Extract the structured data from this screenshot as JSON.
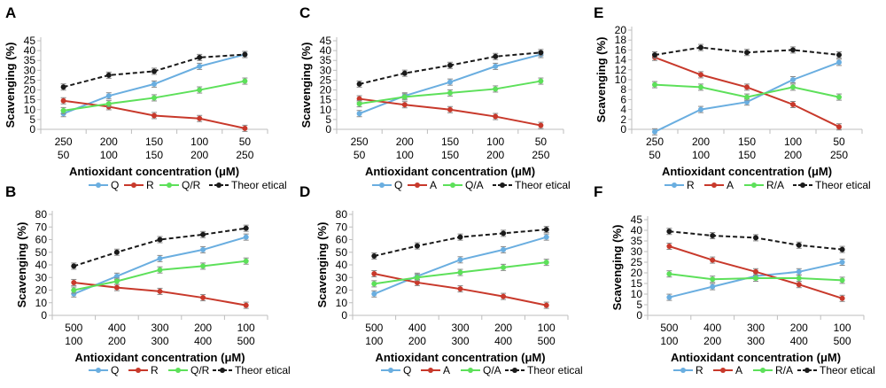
{
  "colors": {
    "blue": "#6aaee0",
    "red": "#c8392b",
    "green": "#5de05a",
    "black": "#1a1a1a",
    "grid": "#bdbdbd"
  },
  "chart_data": [
    {
      "type": "line",
      "panel": "A",
      "ylabel": "Scavenging (%)",
      "xlabel": "Antioxidant concentration (μM)",
      "ylim": [
        0,
        45
      ],
      "yticks": [
        0,
        5,
        10,
        15,
        20,
        25,
        30,
        35,
        40,
        45
      ],
      "categories": [
        [
          "250",
          "50"
        ],
        [
          "200",
          "100"
        ],
        [
          "150",
          "150"
        ],
        [
          "100",
          "200"
        ],
        [
          "50",
          "250"
        ]
      ],
      "series": [
        {
          "name": "Q",
          "color": "blue",
          "values": [
            8,
            17,
            23,
            32,
            38
          ]
        },
        {
          "name": "R",
          "color": "red",
          "values": [
            14.5,
            11.5,
            7,
            5.5,
            0.5
          ]
        },
        {
          "name": "Q/R",
          "color": "green",
          "values": [
            9.5,
            13,
            16,
            20,
            24.5
          ]
        },
        {
          "name": "Theor etical",
          "color": "black",
          "dashed": true,
          "values": [
            21.5,
            27.5,
            29.5,
            36.5,
            38
          ]
        }
      ]
    },
    {
      "type": "line",
      "panel": "C",
      "ylabel": "Scavenging (%)",
      "xlabel": "Antioxidant concentration (μM)",
      "ylim": [
        0,
        45
      ],
      "yticks": [
        0,
        5,
        10,
        15,
        20,
        25,
        30,
        35,
        40,
        45
      ],
      "categories": [
        [
          "250",
          "50"
        ],
        [
          "200",
          "100"
        ],
        [
          "150",
          "150"
        ],
        [
          "100",
          "200"
        ],
        [
          "50",
          "250"
        ]
      ],
      "series": [
        {
          "name": "Q",
          "color": "blue",
          "values": [
            8,
            17,
            24,
            32,
            38
          ]
        },
        {
          "name": "A",
          "color": "red",
          "values": [
            15.5,
            12.5,
            10,
            6.5,
            2
          ]
        },
        {
          "name": "Q/A",
          "color": "green",
          "values": [
            13,
            16.5,
            18.5,
            20.5,
            24.5
          ]
        },
        {
          "name": "Theor etical",
          "color": "black",
          "dashed": true,
          "values": [
            23,
            28.5,
            32.5,
            37,
            39
          ]
        }
      ]
    },
    {
      "type": "line",
      "panel": "E",
      "ylabel": "Scavenging (%)",
      "xlabel": "Antioxidant concentration (μM)",
      "ylim": [
        0,
        20
      ],
      "yticks": [
        0,
        2,
        4,
        6,
        8,
        10,
        12,
        14,
        16,
        18,
        20
      ],
      "categories": [
        [
          "250",
          "50"
        ],
        [
          "200",
          "100"
        ],
        [
          "150",
          "150"
        ],
        [
          "100",
          "200"
        ],
        [
          "50",
          "250"
        ]
      ],
      "series": [
        {
          "name": "R",
          "color": "blue",
          "values": [
            -0.5,
            4,
            5.5,
            10,
            13.5
          ]
        },
        {
          "name": "A",
          "color": "red",
          "values": [
            14.5,
            11,
            8.5,
            5,
            0.5
          ]
        },
        {
          "name": "R/A",
          "color": "green",
          "values": [
            9,
            8.5,
            6.5,
            8.5,
            6.5
          ]
        },
        {
          "name": "Theor etical",
          "color": "black",
          "dashed": true,
          "values": [
            15,
            16.5,
            15.5,
            16,
            15
          ]
        }
      ]
    },
    {
      "type": "line",
      "panel": "B",
      "ylabel": "Scavenging (%)",
      "xlabel": "Antioxidant concentration (μM)",
      "ylim": [
        0,
        80
      ],
      "yticks": [
        0,
        10,
        20,
        30,
        40,
        50,
        60,
        70,
        80
      ],
      "categories": [
        [
          "500",
          "100"
        ],
        [
          "400",
          "200"
        ],
        [
          "300",
          "300"
        ],
        [
          "200",
          "400"
        ],
        [
          "100",
          "500"
        ]
      ],
      "series": [
        {
          "name": "Q",
          "color": "blue",
          "values": [
            17,
            31,
            45,
            52,
            62
          ]
        },
        {
          "name": "R",
          "color": "red",
          "values": [
            26,
            22,
            19,
            14,
            8
          ]
        },
        {
          "name": "Q/R",
          "color": "green",
          "values": [
            20,
            27,
            36,
            39,
            43
          ]
        },
        {
          "name": "Theor etical",
          "color": "black",
          "dashed": true,
          "values": [
            39,
            50,
            60,
            64,
            69
          ]
        }
      ]
    },
    {
      "type": "line",
      "panel": "D",
      "ylabel": "Scavenging (%)",
      "xlabel": "Antioxidant concentration (μM)",
      "ylim": [
        0,
        80
      ],
      "yticks": [
        0,
        10,
        20,
        30,
        40,
        50,
        60,
        70,
        80
      ],
      "categories": [
        [
          "500",
          "100"
        ],
        [
          "400",
          "200"
        ],
        [
          "300",
          "300"
        ],
        [
          "200",
          "400"
        ],
        [
          "100",
          "500"
        ]
      ],
      "series": [
        {
          "name": "Q",
          "color": "blue",
          "values": [
            17,
            31,
            44,
            52,
            62
          ]
        },
        {
          "name": "A",
          "color": "red",
          "values": [
            33,
            26,
            21,
            15,
            8
          ]
        },
        {
          "name": "Q/A",
          "color": "green",
          "values": [
            25,
            30,
            34,
            38,
            42
          ]
        },
        {
          "name": "Theor etical",
          "color": "black",
          "dashed": true,
          "values": [
            47,
            55,
            62,
            65,
            68
          ]
        }
      ]
    },
    {
      "type": "line",
      "panel": "F",
      "ylabel": "Scavenging (%)",
      "xlabel": "Antioxidant concentration (μM)",
      "ylim": [
        0,
        45
      ],
      "yticks": [
        0,
        5,
        10,
        15,
        20,
        25,
        30,
        35,
        40,
        45
      ],
      "categories": [
        [
          "500",
          "100"
        ],
        [
          "400",
          "200"
        ],
        [
          "300",
          "300"
        ],
        [
          "200",
          "400"
        ],
        [
          "100",
          "500"
        ]
      ],
      "series": [
        {
          "name": "R",
          "color": "blue",
          "values": [
            8.5,
            13.5,
            18.5,
            20.5,
            25
          ]
        },
        {
          "name": "A",
          "color": "red",
          "values": [
            32.5,
            26,
            20.5,
            14.5,
            8
          ]
        },
        {
          "name": "R/A",
          "color": "green",
          "values": [
            19.5,
            17,
            17.5,
            17.5,
            16.5
          ]
        },
        {
          "name": "Theor etical",
          "color": "black",
          "dashed": true,
          "values": [
            39.5,
            37.5,
            36.5,
            33,
            31
          ]
        }
      ]
    }
  ]
}
